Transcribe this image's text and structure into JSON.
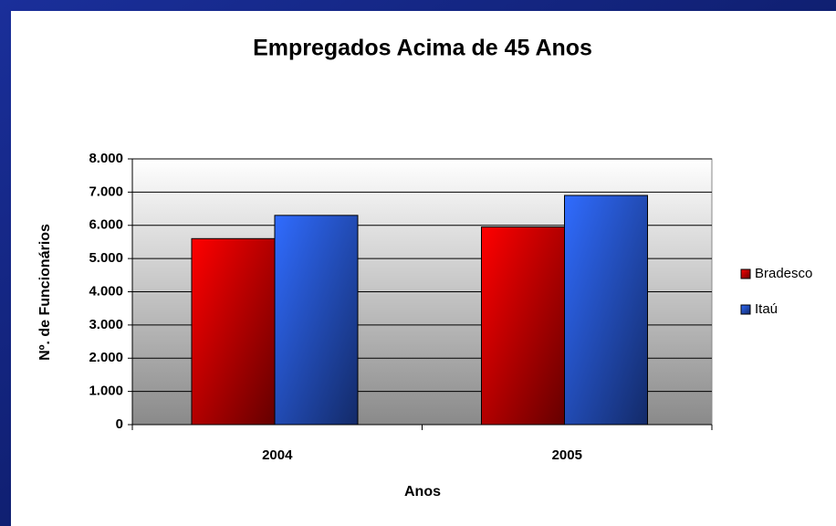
{
  "chart_data": {
    "type": "bar",
    "title": "Empregados Acima de 45 Anos",
    "xlabel": "Anos",
    "ylabel": "Nº. de Funcionários",
    "categories": [
      "2004",
      "2005"
    ],
    "series": [
      {
        "name": "Bradesco",
        "color": "#e00000",
        "values": [
          5600,
          5950
        ]
      },
      {
        "name": "Itaú",
        "color": "#2a5ee8",
        "values": [
          6300,
          6900
        ]
      }
    ],
    "ylim": [
      0,
      8000
    ],
    "yticks": [
      0,
      {
        "value": 1000,
        "label": "1.000"
      },
      {
        "value": 2000,
        "label": "2.000"
      },
      {
        "value": 3000,
        "label": "3.000"
      },
      {
        "value": 4000,
        "label": "4.000"
      },
      {
        "value": 5000,
        "label": "5.000"
      },
      {
        "value": 6000,
        "label": "6.000"
      },
      {
        "value": 7000,
        "label": "7.000"
      },
      {
        "value": 8000,
        "label": "8.000"
      }
    ],
    "grid": true,
    "legend": "right"
  }
}
